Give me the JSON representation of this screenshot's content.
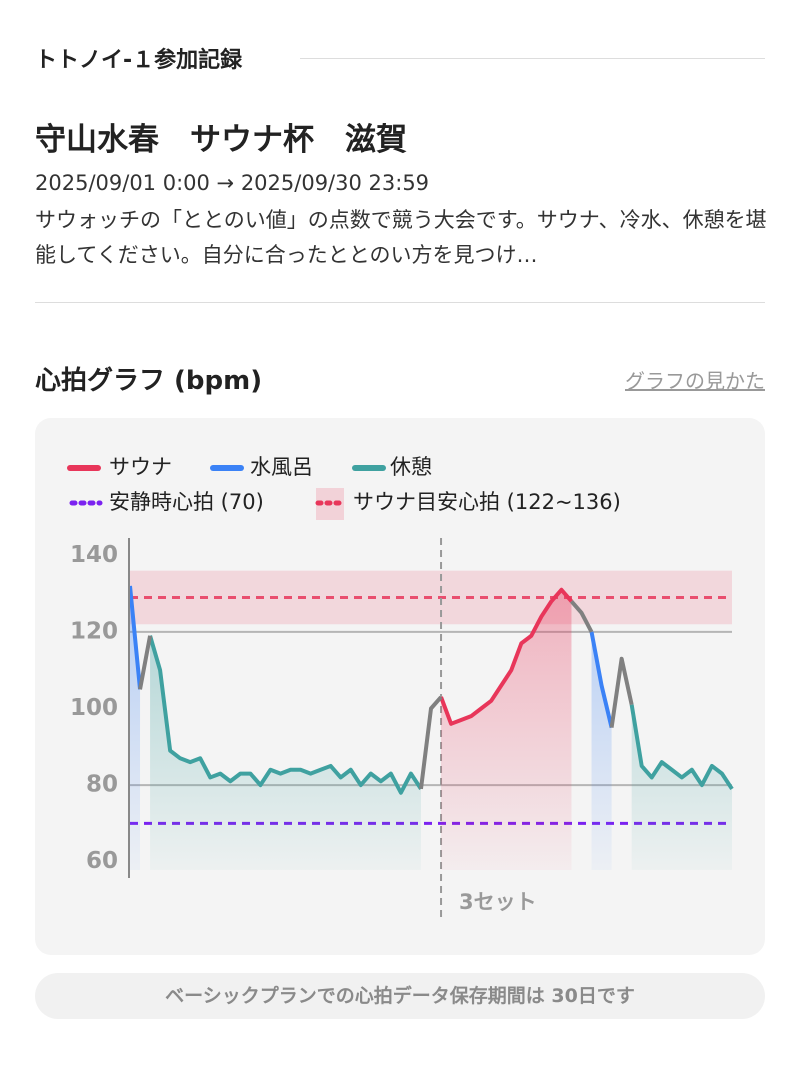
{
  "header": {
    "title": "トトノイ-１参加記録"
  },
  "event": {
    "title": "守山水春　サウナ杯　滋賀",
    "period": "2025/09/01 0:00 → 2025/09/30 23:59",
    "description": "サウォッチの「ととのい値」の点数で競う大会です。サウナ、冷水、休憩を堪能してください。自分に合ったととのい方を見つけ…"
  },
  "section": {
    "title": "心拍グラフ (bpm)",
    "link": "グラフの見かた"
  },
  "chart_data": {
    "type": "line",
    "ylim": [
      56,
      144
    ],
    "yticks": [
      60,
      80,
      100,
      120,
      140
    ],
    "grid_lines": [
      80,
      120
    ],
    "series": [
      {
        "name": "サウナ",
        "color": "#e8365a",
        "area": true,
        "values": [
          null,
          null,
          null,
          null,
          null,
          null,
          null,
          null,
          null,
          null,
          null,
          null,
          null,
          null,
          null,
          null,
          null,
          null,
          null,
          null,
          null,
          null,
          null,
          null,
          null,
          null,
          null,
          null,
          null,
          null,
          null,
          103,
          96,
          97,
          98,
          100,
          102,
          106,
          110,
          117,
          119,
          124,
          128,
          131,
          128,
          null,
          null,
          null,
          null,
          null,
          null,
          null,
          null,
          null,
          null,
          null,
          null,
          null,
          null,
          null,
          null
        ]
      },
      {
        "name": "水風呂",
        "color": "#3b82f6",
        "area": true,
        "values": [
          132,
          105,
          null,
          null,
          null,
          null,
          null,
          null,
          null,
          null,
          null,
          null,
          null,
          null,
          null,
          null,
          null,
          null,
          null,
          null,
          null,
          null,
          null,
          null,
          null,
          null,
          null,
          null,
          null,
          null,
          null,
          null,
          null,
          null,
          null,
          null,
          null,
          null,
          null,
          null,
          null,
          null,
          null,
          null,
          null,
          null,
          120,
          106,
          95,
          null,
          null,
          null,
          null,
          null,
          null,
          null,
          null,
          null,
          null,
          null,
          null
        ]
      },
      {
        "name": "休憩",
        "color": "#3fa1a0",
        "area": true,
        "values": [
          null,
          null,
          119,
          110,
          89,
          87,
          86,
          87,
          82,
          83,
          81,
          83,
          83,
          80,
          84,
          83,
          84,
          84,
          83,
          84,
          85,
          82,
          84,
          80,
          83,
          81,
          83,
          78,
          83,
          79,
          null,
          null,
          null,
          null,
          null,
          null,
          null,
          null,
          null,
          null,
          null,
          null,
          null,
          null,
          null,
          null,
          null,
          null,
          null,
          null,
          101,
          85,
          82,
          86,
          84,
          82,
          84,
          80,
          85,
          83,
          79
        ]
      },
      {
        "color": "#808080",
        "area": false,
        "values": [
          null,
          105,
          119,
          null,
          null,
          null,
          null,
          null,
          null,
          null,
          null,
          null,
          null,
          null,
          null,
          null,
          null,
          null,
          null,
          null,
          null,
          null,
          null,
          null,
          null,
          null,
          null,
          null,
          null,
          79,
          100,
          103,
          null,
          null,
          null,
          null,
          null,
          null,
          null,
          null,
          null,
          null,
          null,
          null,
          128,
          125,
          120,
          null,
          95,
          113,
          101,
          null,
          null,
          null,
          null,
          null,
          null,
          null,
          null,
          null,
          null
        ]
      }
    ],
    "resting": {
      "label": "安静時心拍 (70)",
      "value": 70,
      "color": "#7b22f0"
    },
    "target_band": {
      "label": "サウナ目安心拍 (122~136)",
      "range": [
        122,
        136
      ],
      "color": "#e8365a"
    },
    "set_marker": {
      "label": "3セット",
      "index": 31
    }
  },
  "footer": {
    "note": "ベーシックプランでの心拍データ保存期間は 30日です"
  }
}
